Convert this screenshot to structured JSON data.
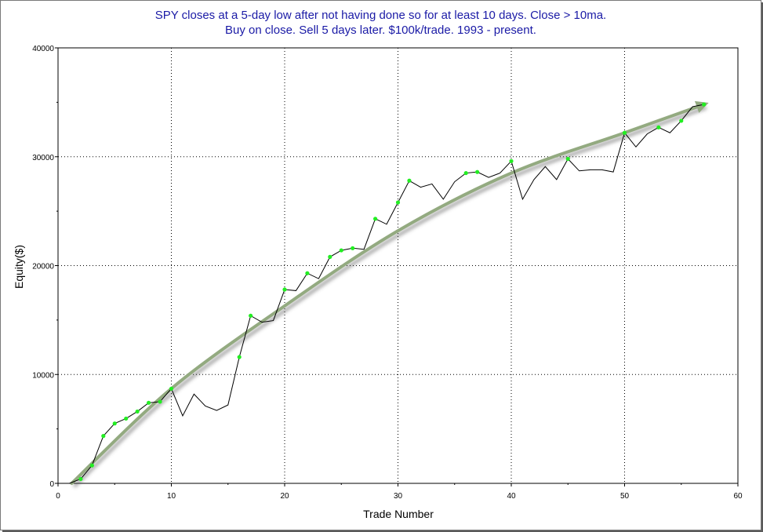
{
  "chart_data": {
    "type": "line",
    "title": "SPY closes at a 5-day low after not having done so for at least 10 days. Close > 10ma.",
    "subtitle": "Buy on close. Sell 5 days later. $100k/trade. 1993 - present.",
    "xlabel": "Trade Number",
    "ylabel": "Equity($)",
    "xlim": [
      0,
      60
    ],
    "ylim": [
      0,
      40000
    ],
    "x_ticks": [
      "0",
      "10",
      "20",
      "30",
      "40",
      "50",
      "60"
    ],
    "y_ticks": [
      "0",
      "10000",
      "20000",
      "30000",
      "40000"
    ],
    "grid": true,
    "series": [
      {
        "x": [
          1,
          2,
          3,
          4,
          5,
          6,
          7,
          8,
          9,
          10,
          11,
          12,
          13,
          14,
          15,
          16,
          17,
          18,
          19,
          20,
          21,
          22,
          23,
          24,
          25,
          26,
          27,
          28,
          29,
          30,
          31,
          32,
          33,
          34,
          35,
          36,
          37,
          38,
          39,
          40,
          41,
          42,
          43,
          44,
          45,
          46,
          47,
          48,
          49,
          50,
          51,
          52,
          53,
          54,
          55,
          56,
          57
        ],
        "values": [
          0,
          400,
          1650,
          4350,
          5500,
          5950,
          6600,
          7400,
          7500,
          8700,
          6200,
          8200,
          7100,
          6700,
          7200,
          11600,
          15400,
          14800,
          14950,
          17800,
          17700,
          19300,
          18800,
          20800,
          21400,
          21600,
          21500,
          24300,
          23800,
          25800,
          27800,
          27200,
          27500,
          26100,
          27700,
          28500,
          28600,
          28100,
          28500,
          29600,
          26100,
          27900,
          29100,
          27900,
          29800,
          28700,
          28800,
          28800,
          28600,
          32200,
          30900,
          32100,
          32700,
          32200,
          33300,
          34600,
          34800
        ],
        "color": "#000000"
      }
    ],
    "marker_points": [
      {
        "x": 2,
        "y": 400
      },
      {
        "x": 3,
        "y": 1650
      },
      {
        "x": 4,
        "y": 4350
      },
      {
        "x": 5,
        "y": 5500
      },
      {
        "x": 6,
        "y": 5950
      },
      {
        "x": 7,
        "y": 6600
      },
      {
        "x": 8,
        "y": 7400
      },
      {
        "x": 9,
        "y": 7500
      },
      {
        "x": 10,
        "y": 8700
      },
      {
        "x": 16,
        "y": 11600
      },
      {
        "x": 17,
        "y": 15400
      },
      {
        "x": 20,
        "y": 17800
      },
      {
        "x": 22,
        "y": 19300
      },
      {
        "x": 24,
        "y": 20800
      },
      {
        "x": 25,
        "y": 21400
      },
      {
        "x": 26,
        "y": 21600
      },
      {
        "x": 28,
        "y": 24300
      },
      {
        "x": 30,
        "y": 25800
      },
      {
        "x": 31,
        "y": 27800
      },
      {
        "x": 36,
        "y": 28500
      },
      {
        "x": 37,
        "y": 28600
      },
      {
        "x": 40,
        "y": 29600
      },
      {
        "x": 45,
        "y": 29800
      },
      {
        "x": 50,
        "y": 32200
      },
      {
        "x": 53,
        "y": 32700
      },
      {
        "x": 55,
        "y": 33300
      },
      {
        "x": 57,
        "y": 34800
      }
    ],
    "marker_color": "#22ee22",
    "trend_arrow": {
      "color": "#93aa80",
      "points": [
        [
          1.2,
          0
        ],
        [
          10,
          8700
        ],
        [
          20,
          16300
        ],
        [
          30,
          23200
        ],
        [
          40,
          28500
        ],
        [
          50,
          32200
        ],
        [
          57,
          34800
        ]
      ]
    }
  }
}
